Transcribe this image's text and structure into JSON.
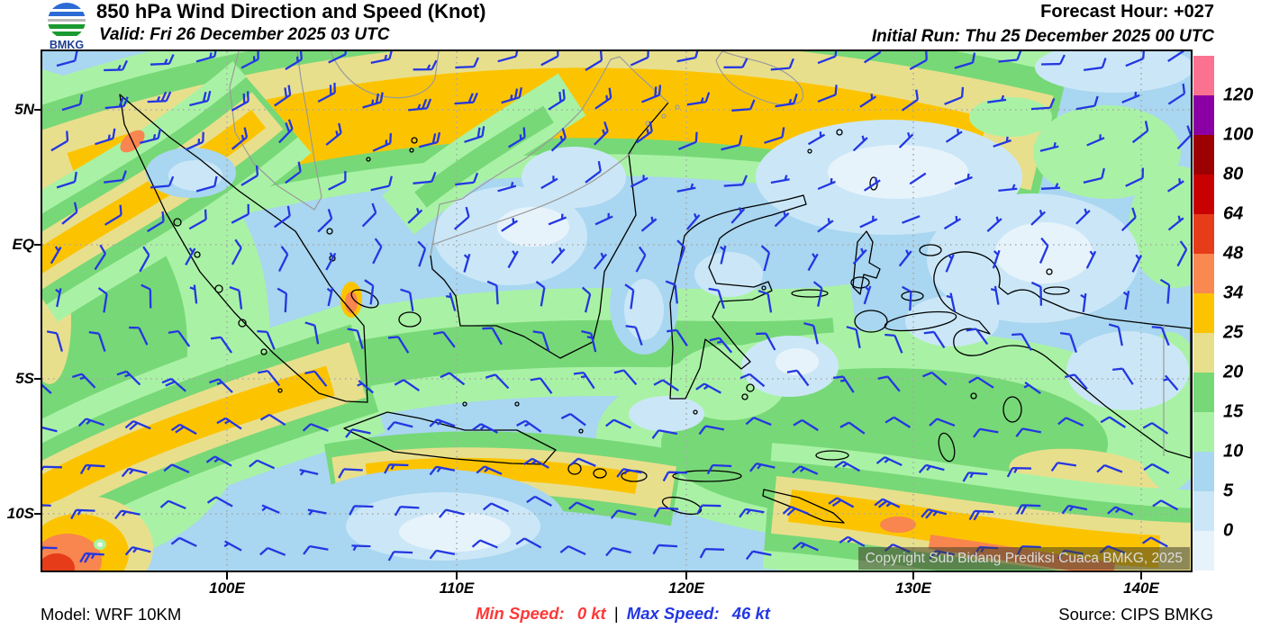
{
  "header": {
    "logo_text": "BMKG",
    "title": "850 hPa Wind Direction and Speed (Knot)",
    "valid": "Valid: Fri 26 December 2025 03 UTC",
    "forecast_hour": "Forecast Hour: +027",
    "initial_run": "Initial Run: Thu 25 December 2025 00 UTC"
  },
  "map": {
    "x_ticks": [
      "100E",
      "110E",
      "120E",
      "130E",
      "140E"
    ],
    "y_ticks": [
      "5N",
      "EQ",
      "5S",
      "10S"
    ],
    "copyright": "Copyright Sub Bidang Prediksi Cuaca BMKG, 2025"
  },
  "legend": {
    "boundary_labels": [
      "120",
      "100",
      "80",
      "64",
      "48",
      "34",
      "25",
      "20",
      "15",
      "10",
      "5",
      "0"
    ],
    "band_colors_top_to_bottom": [
      "#FB7291",
      "#8B00A5",
      "#9C0000",
      "#C80000",
      "#E63C1A",
      "#F98851",
      "#FCC400",
      "#E8DF8D",
      "#77D877",
      "#A9F2A5",
      "#A9D6F0",
      "#CBE7F7",
      "#E7F3FB"
    ]
  },
  "footer": {
    "model": "Model: WRF 10KM",
    "min_label": "Min Speed:",
    "min_value": "0 kt",
    "separator": "|",
    "max_label": "Max Speed:",
    "max_value": "46 kt",
    "source": "Source: CIPS BMKG"
  },
  "colors": {
    "barb": "#2337E2",
    "min_text": "#FF3838",
    "max_text": "#2337E2",
    "sea_base": "#A9D6F0"
  }
}
